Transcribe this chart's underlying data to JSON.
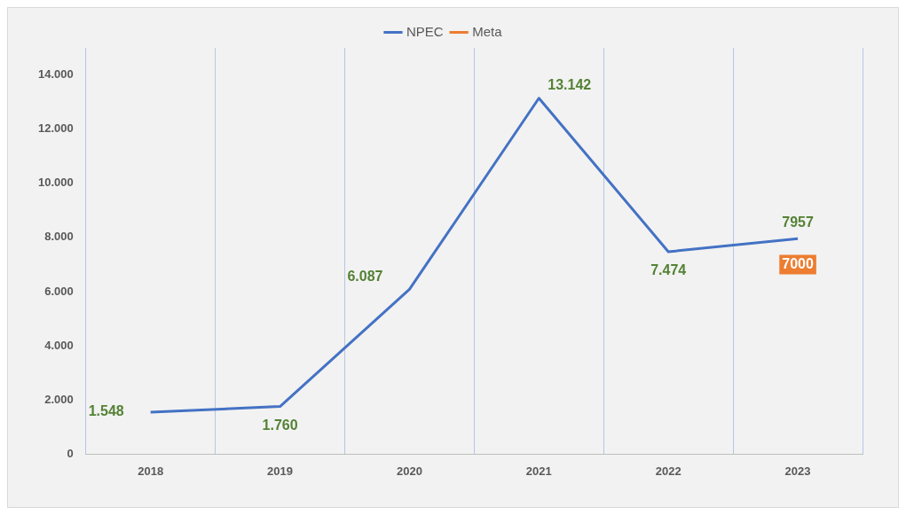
{
  "chart_data": {
    "type": "line",
    "categories": [
      "2018",
      "2019",
      "2020",
      "2021",
      "2022",
      "2023"
    ],
    "series": [
      {
        "name": "NPEC",
        "color": "#4472c4",
        "values": [
          1548,
          1760,
          6087,
          13142,
          7474,
          7957
        ],
        "value_labels": [
          "1.548",
          "1.760",
          "6.087",
          "13.142",
          "7.474",
          "7957"
        ]
      },
      {
        "name": "Meta",
        "color": "#ed7d31",
        "marker": "square",
        "values": [
          null,
          null,
          null,
          null,
          null,
          7000
        ],
        "value_labels": [
          null,
          null,
          null,
          null,
          null,
          "7000"
        ]
      }
    ],
    "ylim": [
      0,
      15000
    ],
    "yticks": [
      0,
      {
        "value": 2000,
        "label": "2.000"
      },
      {
        "value": 4000,
        "label": "4.000"
      },
      {
        "value": 6000,
        "label": "6.000"
      },
      {
        "value": 8000,
        "label": "8.000"
      },
      {
        "value": 10000,
        "label": "10.000"
      },
      {
        "value": 12000,
        "label": "12.000"
      },
      {
        "value": 14000,
        "label": "14.000"
      }
    ],
    "grid": "x",
    "legend": "top",
    "marker": "none",
    "line_style": "solid"
  }
}
